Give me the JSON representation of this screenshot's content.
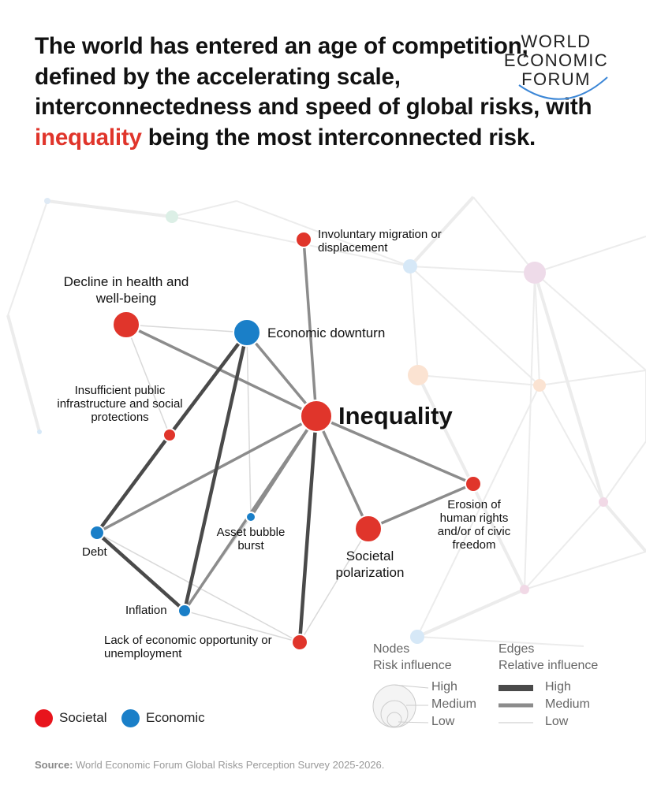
{
  "headline": {
    "part1": "The world has entered an age of competition, defined by the accelerating scale, interconnectedness and speed of global risks, with ",
    "highlight": "inequality",
    "part2": " being the most interconnected risk.",
    "highlight_color": "#e0352b"
  },
  "logo": {
    "line1": "WORLD",
    "line2": "ECONOMIC",
    "line3": "FORUM"
  },
  "colors": {
    "societal": "#e0352b",
    "economic": "#1a7fc8"
  },
  "nodes": [
    {
      "id": "migration",
      "label": "Involuntary migration or displacement",
      "category": "societal",
      "influence": "low"
    },
    {
      "id": "health",
      "label": "Decline in health and well-being",
      "category": "societal",
      "influence": "medium"
    },
    {
      "id": "downturn",
      "label": "Economic downturn",
      "category": "economic",
      "influence": "medium"
    },
    {
      "id": "inequality",
      "label": "Inequality",
      "category": "societal",
      "influence": "high"
    },
    {
      "id": "infrastructure",
      "label": "Insufficient public infrastructure and social protections",
      "category": "societal",
      "influence": "low"
    },
    {
      "id": "erosion",
      "label": "Erosion of human rights and/or of civic freedom",
      "category": "societal",
      "influence": "low"
    },
    {
      "id": "polarization",
      "label": "Societal polarization",
      "category": "societal",
      "influence": "medium"
    },
    {
      "id": "bubble",
      "label": "Asset bubble burst",
      "category": "economic",
      "influence": "low"
    },
    {
      "id": "debt",
      "label": "Debt",
      "category": "economic",
      "influence": "low"
    },
    {
      "id": "inflation",
      "label": "Inflation",
      "category": "economic",
      "influence": "low"
    },
    {
      "id": "opportunity",
      "label": "Lack of economic opportunity or unemployment",
      "category": "societal",
      "influence": "low"
    }
  ],
  "edges": [
    {
      "from": "health",
      "to": "inequality",
      "influence": "medium"
    },
    {
      "from": "downturn",
      "to": "inequality",
      "influence": "medium"
    },
    {
      "from": "migration",
      "to": "inequality",
      "influence": "medium"
    },
    {
      "from": "inequality",
      "to": "polarization",
      "influence": "medium"
    },
    {
      "from": "inequality",
      "to": "erosion",
      "influence": "medium"
    },
    {
      "from": "inequality",
      "to": "opportunity",
      "influence": "high"
    },
    {
      "from": "inequality",
      "to": "debt",
      "influence": "medium"
    },
    {
      "from": "inequality",
      "to": "inflation",
      "influence": "medium"
    },
    {
      "from": "inequality",
      "to": "bubble",
      "influence": "medium"
    },
    {
      "from": "downturn",
      "to": "infrastructure",
      "influence": "high"
    },
    {
      "from": "downturn",
      "to": "inflation",
      "influence": "high"
    },
    {
      "from": "infrastructure",
      "to": "debt",
      "influence": "high"
    },
    {
      "from": "debt",
      "to": "inflation",
      "influence": "high"
    },
    {
      "from": "polarization",
      "to": "erosion",
      "influence": "medium"
    },
    {
      "from": "downturn",
      "to": "debt",
      "influence": "low"
    },
    {
      "from": "downturn",
      "to": "bubble",
      "influence": "low"
    },
    {
      "from": "bubble",
      "to": "inflation",
      "influence": "low"
    },
    {
      "from": "health",
      "to": "infrastructure",
      "influence": "low"
    },
    {
      "from": "health",
      "to": "downturn",
      "influence": "low"
    },
    {
      "from": "debt",
      "to": "opportunity",
      "influence": "low"
    },
    {
      "from": "polarization",
      "to": "opportunity",
      "influence": "low"
    },
    {
      "from": "inflation",
      "to": "opportunity",
      "influence": "low"
    }
  ],
  "legend": {
    "societal": "Societal",
    "economic": "Economic",
    "nodes_title_1": "Nodes",
    "nodes_title_2": "Risk influence",
    "edges_title_1": "Edges",
    "edges_title_2": "Relative influence",
    "high": "High",
    "medium": "Medium",
    "low": "Low"
  },
  "source": {
    "prefix": "Source:",
    "text": " World Economic Forum Global Risks Perception Survey 2025-2026."
  }
}
